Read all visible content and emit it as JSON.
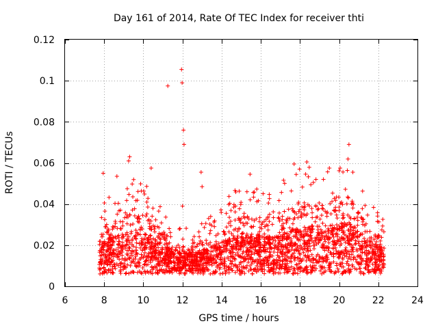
{
  "chart_data": {
    "type": "scatter",
    "title": "Day 161 of 2014, Rate Of TEC Index for receiver thti",
    "xlabel": "GPS time / hours",
    "ylabel": "ROTI / TECUs",
    "xlim": [
      6,
      24
    ],
    "ylim": [
      0,
      0.12
    ],
    "xticks": [
      6,
      8,
      10,
      12,
      14,
      16,
      18,
      20,
      22,
      24
    ],
    "xtick_labels": [
      "6",
      "8",
      "10",
      "12",
      "14",
      "16",
      "18",
      "20",
      "22",
      "24"
    ],
    "yticks": [
      0,
      0.02,
      0.04,
      0.06,
      0.08,
      0.1,
      0.12
    ],
    "ytick_labels": [
      "0",
      "0.02",
      "0.04",
      "0.06",
      "0.08",
      "0.1",
      "0.12"
    ],
    "grid": true,
    "marker": "+",
    "color": "#ff0000",
    "series": [
      {
        "name": "ROTI",
        "x_range": [
          7.75,
          22.3
        ],
        "typical_range": [
          0.005,
          0.035
        ],
        "baseline_profile": [
          [
            7.75,
            0.018
          ],
          [
            8.5,
            0.02
          ],
          [
            9.5,
            0.024
          ],
          [
            10.5,
            0.02
          ],
          [
            11.5,
            0.013
          ],
          [
            12.5,
            0.012
          ],
          [
            13.5,
            0.015
          ],
          [
            14.5,
            0.02
          ],
          [
            15.5,
            0.022
          ],
          [
            16.5,
            0.02
          ],
          [
            17.5,
            0.024
          ],
          [
            18.5,
            0.026
          ],
          [
            19.5,
            0.027
          ],
          [
            20.5,
            0.028
          ],
          [
            21.5,
            0.018
          ],
          [
            22.3,
            0.014
          ]
        ],
        "outliers": [
          [
            11.25,
            0.0975
          ],
          [
            11.95,
            0.1055
          ],
          [
            11.98,
            0.099
          ],
          [
            12.05,
            0.076
          ],
          [
            12.08,
            0.069
          ],
          [
            20.5,
            0.069
          ],
          [
            9.3,
            0.063
          ],
          [
            9.25,
            0.061
          ],
          [
            18.35,
            0.0605
          ],
          [
            17.7,
            0.0595
          ],
          [
            19.5,
            0.0575
          ],
          [
            20.05,
            0.0575
          ],
          [
            10.4,
            0.0575
          ],
          [
            12.95,
            0.0555
          ],
          [
            7.95,
            0.055
          ],
          [
            15.45,
            0.0545
          ],
          [
            20.7,
            0.0555
          ],
          [
            8.65,
            0.0535
          ],
          [
            13.0,
            0.0485
          ],
          [
            12.0,
            0.039
          ]
        ]
      }
    ]
  }
}
